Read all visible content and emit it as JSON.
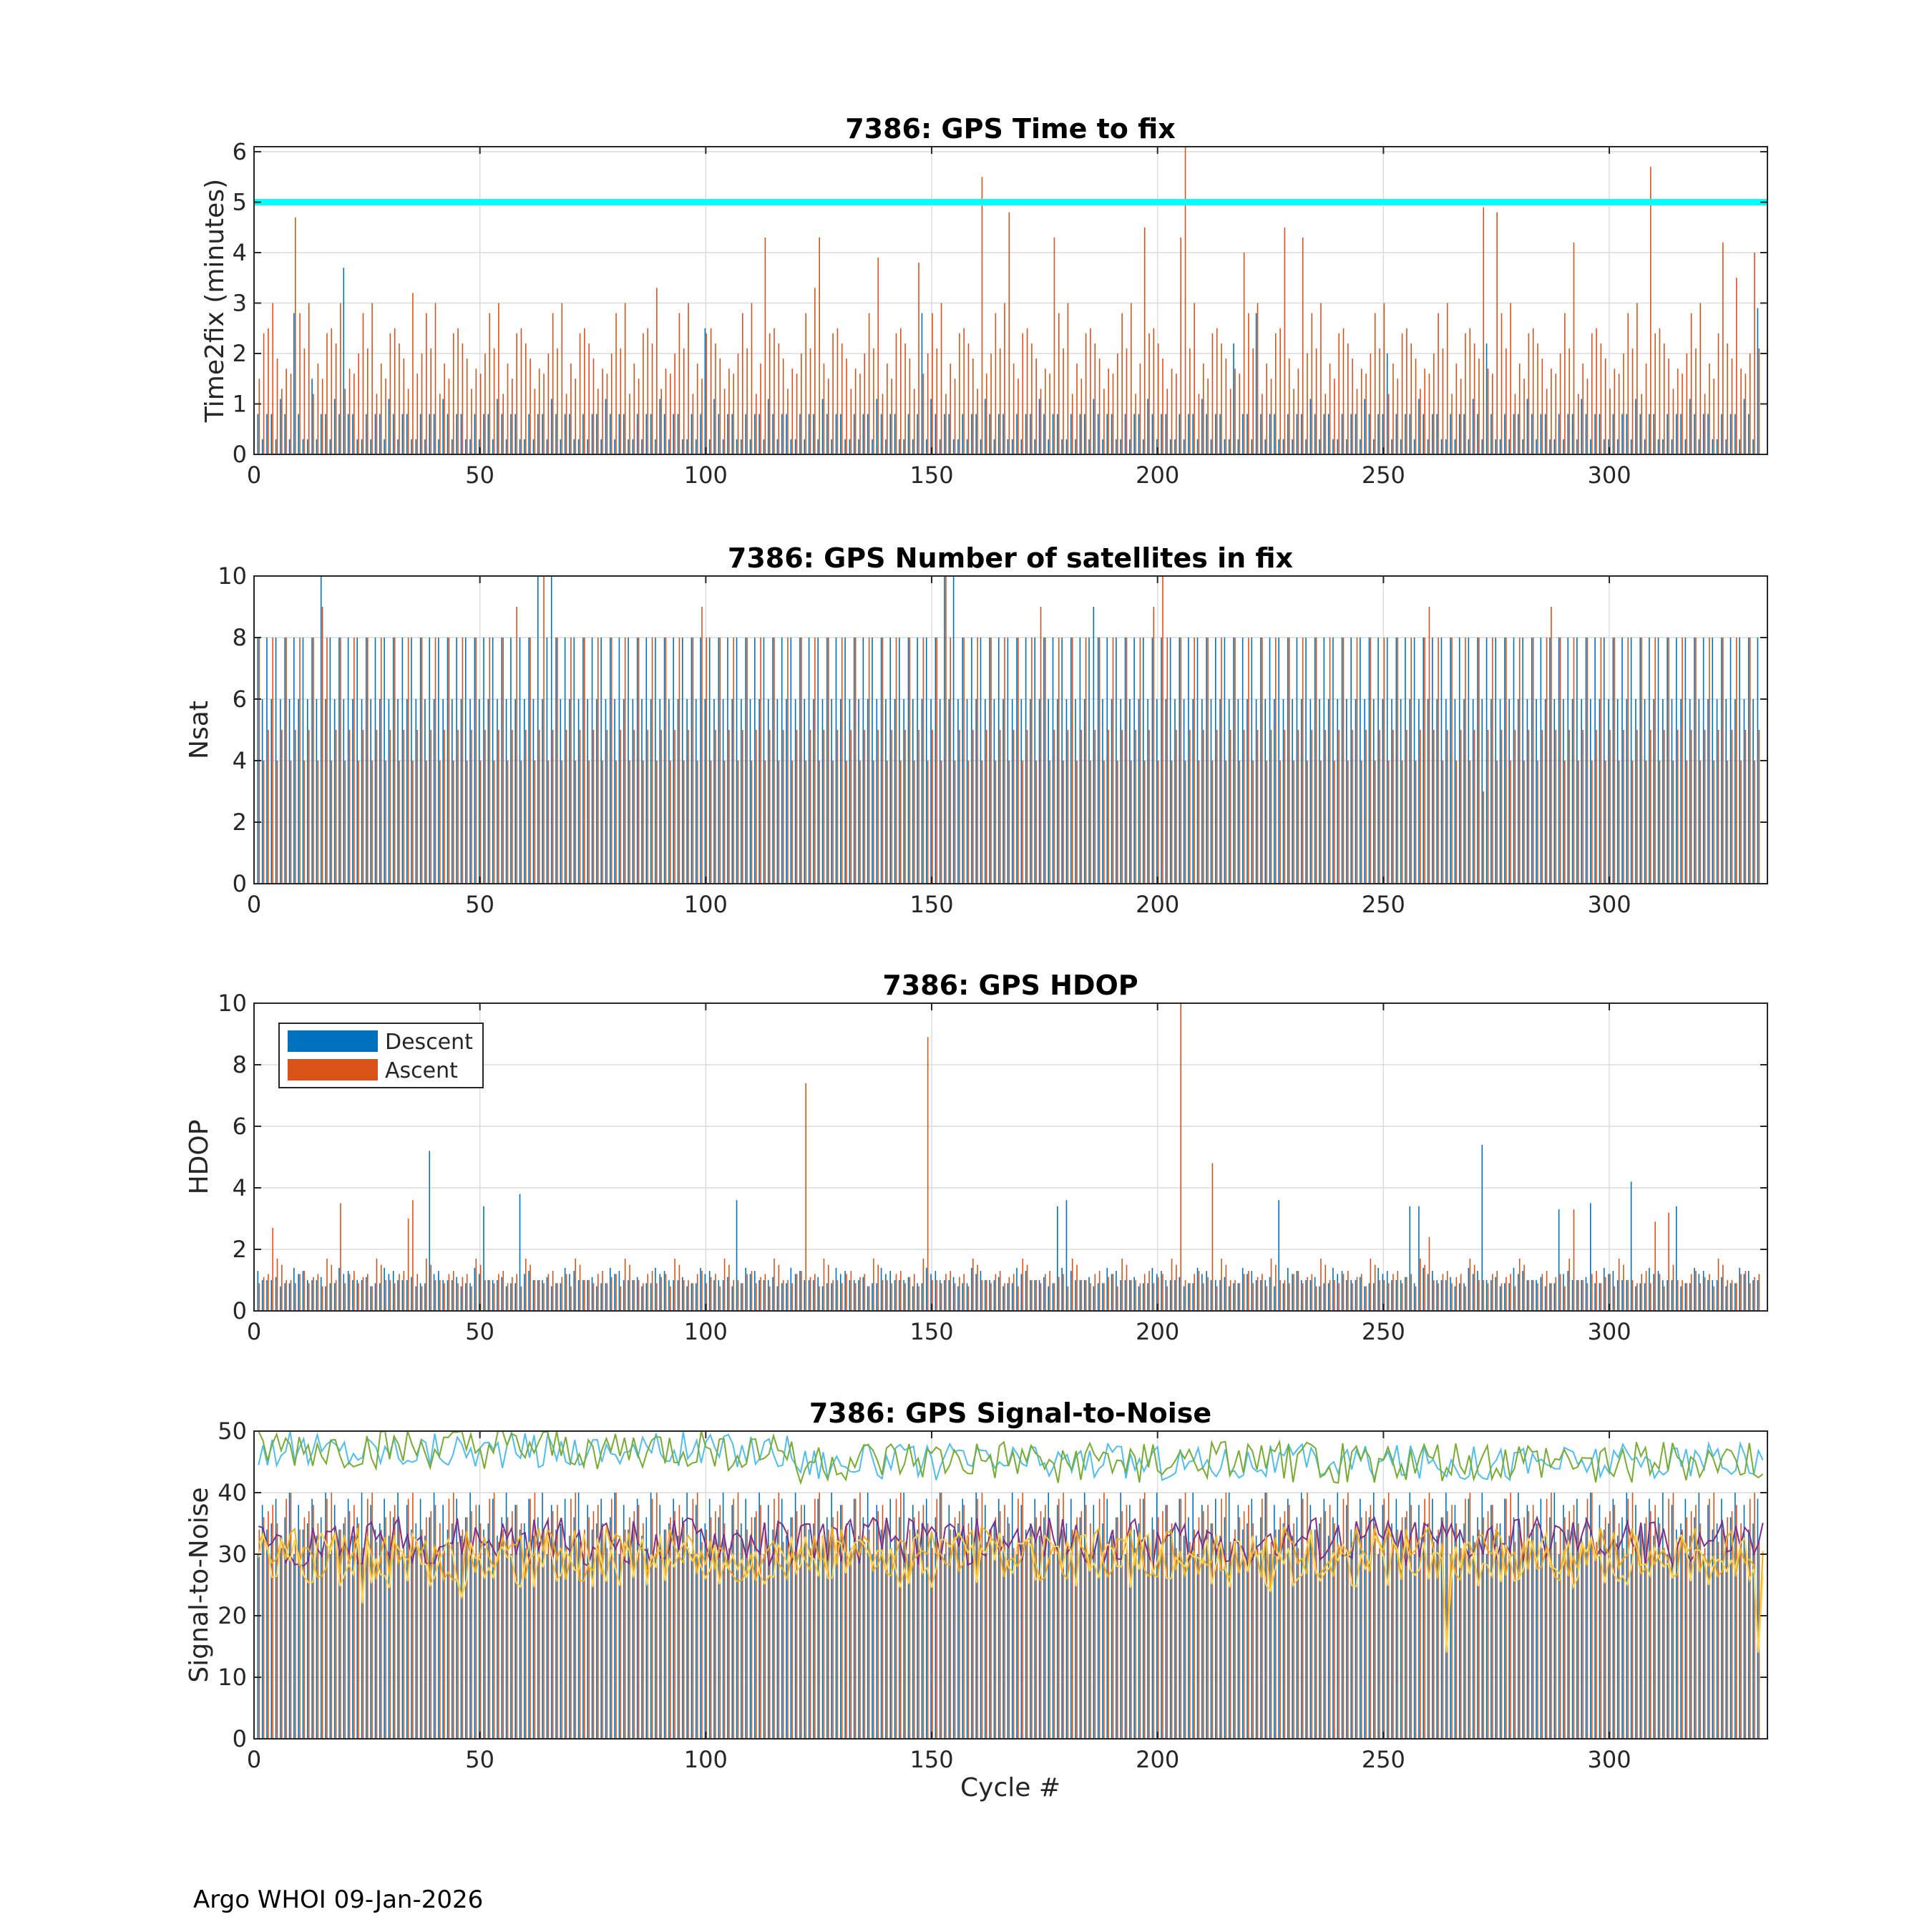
{
  "footer": "Argo WHOI 09-Jan-2026",
  "colors": {
    "descent": "#0072BD",
    "ascent": "#D95319",
    "threshold": "#00FFFF",
    "snr_lines": [
      "#4DBEEE",
      "#77AC30",
      "#7E2F8E",
      "#EDB120",
      "#FFD54F"
    ]
  },
  "legend": {
    "descent": "Descent",
    "ascent": "Ascent",
    "position": "top-left"
  },
  "chart_data": [
    {
      "type": "bar",
      "title": "7386: GPS Time to fix",
      "ylabel": "Time2fix (minutes)",
      "xlabel": "",
      "xlim": [
        0,
        335
      ],
      "ylim": [
        0,
        6.1
      ],
      "xticks": [
        "0",
        "50",
        "100",
        "150",
        "200",
        "250",
        "300"
      ],
      "yticks": [
        "0",
        "1",
        "2",
        "3",
        "4",
        "5",
        "6"
      ],
      "threshold": 5,
      "descent_pattern": [
        0.3,
        0.8,
        0.3,
        0.8,
        0.8,
        0.3,
        1.1,
        0.8,
        0.3,
        0.8,
        0.8,
        0.3
      ],
      "ascent_pattern": [
        1.8,
        2.5,
        1.3,
        2.0,
        3.0,
        1.5,
        2.2,
        1.7,
        2.8,
        1.2,
        2.4,
        1.9,
        1.6,
        2.1
      ],
      "descent_spikes": [
        [
          9,
          2.8
        ],
        [
          13,
          1.5
        ],
        [
          20,
          3.7
        ],
        [
          100,
          2.5
        ],
        [
          148,
          2.8
        ],
        [
          217,
          2.2
        ],
        [
          222,
          2.8
        ],
        [
          251,
          2.0
        ],
        [
          273,
          2.2
        ],
        [
          333,
          2.9
        ]
      ],
      "ascent_spikes": [
        [
          4,
          3.0
        ],
        [
          9,
          4.7
        ],
        [
          19,
          3.0
        ],
        [
          35,
          3.2
        ],
        [
          40,
          3.0
        ],
        [
          89,
          3.3
        ],
        [
          113,
          4.3
        ],
        [
          124,
          3.3
        ],
        [
          125,
          4.3
        ],
        [
          138,
          3.9
        ],
        [
          147,
          3.8
        ],
        [
          161,
          5.5
        ],
        [
          167,
          4.8
        ],
        [
          177,
          4.3
        ],
        [
          197,
          4.5
        ],
        [
          205,
          4.3
        ],
        [
          206,
          6.1
        ],
        [
          219,
          4.0
        ],
        [
          228,
          4.5
        ],
        [
          232,
          4.3
        ],
        [
          272,
          4.9
        ],
        [
          275,
          4.8
        ],
        [
          292,
          4.2
        ],
        [
          309,
          5.7
        ],
        [
          325,
          4.2
        ],
        [
          328,
          3.5
        ],
        [
          332,
          4.0
        ]
      ]
    },
    {
      "type": "bar",
      "title": "7386: GPS Number of satellites in fix",
      "ylabel": "Nsat",
      "xlabel": "",
      "xlim": [
        0,
        335
      ],
      "ylim": [
        0,
        10
      ],
      "xticks": [
        "0",
        "50",
        "100",
        "150",
        "200",
        "250",
        "300"
      ],
      "yticks": [
        "0",
        "2",
        "4",
        "6",
        "8",
        "10"
      ],
      "descent_pattern": [
        5,
        6,
        5,
        7,
        4,
        5,
        6,
        5,
        8,
        5,
        6,
        4,
        7,
        5
      ],
      "ascent_pattern": [
        5,
        6,
        4,
        5,
        7,
        5,
        6,
        4,
        8,
        5,
        6,
        5,
        7,
        4,
        6
      ],
      "descent_spikes": [
        [
          15,
          10
        ],
        [
          63,
          10
        ],
        [
          66,
          10
        ],
        [
          153,
          10
        ],
        [
          155,
          10
        ],
        [
          186,
          9
        ]
      ],
      "ascent_spikes": [
        [
          15,
          9
        ],
        [
          58,
          9
        ],
        [
          64,
          10
        ],
        [
          99,
          9
        ],
        [
          153,
          10
        ],
        [
          174,
          9
        ],
        [
          199,
          9
        ],
        [
          201,
          10
        ],
        [
          260,
          9
        ],
        [
          272,
          3
        ],
        [
          287,
          9
        ]
      ]
    },
    {
      "type": "bar",
      "title": "7386: GPS HDOP",
      "ylabel": "HDOP",
      "xlabel": "",
      "xlim": [
        0,
        335
      ],
      "ylim": [
        0,
        10
      ],
      "xticks": [
        "0",
        "50",
        "100",
        "150",
        "200",
        "250",
        "300"
      ],
      "yticks": [
        "0",
        "2",
        "4",
        "6",
        "8",
        "10"
      ],
      "legend": true,
      "descent_pattern": [
        1.0,
        0.9,
        1.2,
        1.0,
        0.8,
        1.4,
        1.0,
        1.1,
        0.9,
        1.3
      ],
      "ascent_pattern": [
        0.9,
        1.2,
        1.0,
        1.5,
        0.8,
        1.1,
        1.3,
        0.9,
        1.0,
        1.7,
        1.2
      ],
      "descent_spikes": [
        [
          39,
          5.2
        ],
        [
          51,
          3.4
        ],
        [
          59,
          3.8
        ],
        [
          107,
          3.6
        ],
        [
          178,
          3.4
        ],
        [
          180,
          3.6
        ],
        [
          227,
          3.6
        ],
        [
          256,
          3.4
        ],
        [
          258,
          3.4
        ],
        [
          272,
          5.4
        ],
        [
          289,
          3.3
        ],
        [
          296,
          3.5
        ],
        [
          305,
          4.2
        ],
        [
          315,
          3.4
        ]
      ],
      "ascent_spikes": [
        [
          4,
          2.7
        ],
        [
          19,
          3.5
        ],
        [
          34,
          3.0
        ],
        [
          35,
          3.6
        ],
        [
          122,
          7.4
        ],
        [
          149,
          8.9
        ],
        [
          205,
          10.0
        ],
        [
          212,
          4.8
        ],
        [
          260,
          2.4
        ],
        [
          292,
          3.3
        ],
        [
          310,
          2.9
        ],
        [
          313,
          3.2
        ]
      ]
    },
    {
      "type": "bar+line",
      "title": "7386: GPS Signal-to-Noise",
      "ylabel": "Signal-to-Noise",
      "xlabel": "Cycle #",
      "xlim": [
        0,
        335
      ],
      "ylim": [
        0,
        50
      ],
      "xticks": [
        "0",
        "50",
        "100",
        "150",
        "200",
        "250",
        "300"
      ],
      "yticks": [
        "0",
        "10",
        "20",
        "30",
        "40",
        "50"
      ],
      "descent_pattern": [
        34,
        38,
        30,
        40,
        36,
        33,
        39,
        35
      ],
      "ascent_pattern": [
        32,
        36,
        38,
        31,
        40,
        34,
        37,
        35,
        39
      ],
      "series_means": [
        45,
        45,
        32,
        30,
        29
      ],
      "series_amp": [
        3,
        3.5,
        4,
        4.5,
        4.5
      ],
      "outliers": [
        [
          264,
          14
        ],
        [
          333,
          14
        ],
        [
          24,
          22
        ],
        [
          46,
          23
        ],
        [
          225,
          24
        ]
      ]
    }
  ]
}
